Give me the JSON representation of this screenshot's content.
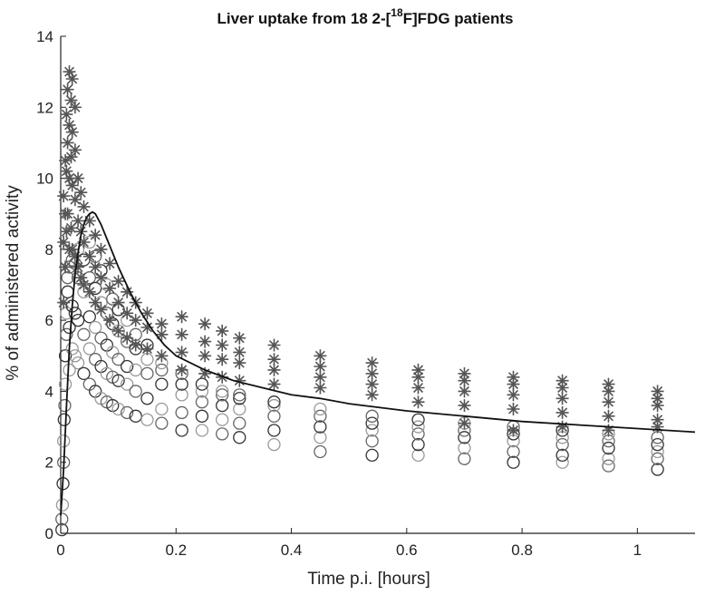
{
  "chart_data": {
    "type": "scatter",
    "title_prefix": "Liver uptake from 18 2-[",
    "title_sup": "18",
    "title_suffix": "F]FDG patients",
    "xlabel": "Time p.i. [hours]",
    "ylabel": "% of administered activity",
    "xlim": [
      0,
      1.1
    ],
    "ylim": [
      0,
      14
    ],
    "xticks": [
      0,
      0.2,
      0.4,
      0.6,
      0.8,
      1
    ],
    "xtick_labels": [
      "0",
      "0.2",
      "0.4",
      "0.6",
      "0.8",
      "1"
    ],
    "yticks": [
      0,
      2,
      4,
      6,
      8,
      10,
      12,
      14
    ],
    "ytick_labels": [
      "0",
      "2",
      "4",
      "6",
      "8",
      "10",
      "12",
      "14"
    ],
    "grid": false,
    "colors": {
      "axis": "#222222",
      "fit": "#111111",
      "circles_dark": "#333333",
      "circles_mid": "#666666",
      "circles_light": "#999999",
      "stars": "#555555"
    },
    "series": [
      {
        "name": "patient-data-star",
        "marker": "star",
        "x": [
          0.005,
          0.005,
          0.005,
          0.008,
          0.008,
          0.008,
          0.01,
          0.01,
          0.01,
          0.012,
          0.012,
          0.012,
          0.015,
          0.015,
          0.015,
          0.015,
          0.018,
          0.018,
          0.018,
          0.02,
          0.02,
          0.02,
          0.02,
          0.025,
          0.025,
          0.025,
          0.025,
          0.03,
          0.03,
          0.03,
          0.035,
          0.035,
          0.035,
          0.04,
          0.04,
          0.04,
          0.05,
          0.05,
          0.05,
          0.06,
          0.06,
          0.06,
          0.07,
          0.07,
          0.07,
          0.085,
          0.085,
          0.085,
          0.1,
          0.1,
          0.1,
          0.115,
          0.115,
          0.115,
          0.13,
          0.13,
          0.13,
          0.15,
          0.15,
          0.15,
          0.175,
          0.175,
          0.175,
          0.21,
          0.21,
          0.21,
          0.21,
          0.25,
          0.25,
          0.25,
          0.25,
          0.28,
          0.28,
          0.28,
          0.28,
          0.31,
          0.31,
          0.31,
          0.31,
          0.37,
          0.37,
          0.37,
          0.37,
          0.45,
          0.45,
          0.45,
          0.45,
          0.54,
          0.54,
          0.54,
          0.54,
          0.62,
          0.62,
          0.62,
          0.62,
          0.7,
          0.7,
          0.7,
          0.7,
          0.785,
          0.785,
          0.785,
          0.785,
          0.87,
          0.87,
          0.87,
          0.87,
          0.95,
          0.95,
          0.95,
          0.95,
          1.035,
          1.035,
          1.035,
          1.035,
          0.7,
          0.785,
          0.87,
          0.95,
          1.035
        ],
        "y": [
          6.5,
          8.2,
          9.5,
          7.5,
          9.0,
          10.5,
          8.5,
          10.2,
          11.8,
          9.0,
          11.0,
          12.5,
          8.0,
          10.0,
          11.5,
          13.0,
          8.6,
          10.6,
          12.2,
          8.0,
          9.8,
          11.3,
          12.8,
          7.8,
          9.4,
          10.8,
          12.0,
          7.5,
          8.8,
          10.0,
          7.2,
          8.5,
          9.6,
          7.0,
          8.2,
          9.2,
          6.8,
          7.8,
          8.8,
          6.5,
          7.5,
          8.4,
          6.3,
          7.2,
          8.0,
          6.0,
          6.9,
          7.6,
          5.7,
          6.5,
          7.1,
          5.5,
          6.2,
          6.8,
          5.3,
          6.0,
          6.5,
          5.2,
          5.8,
          6.2,
          5.0,
          5.6,
          5.9,
          4.6,
          5.1,
          5.6,
          6.1,
          4.5,
          5.0,
          5.4,
          5.9,
          4.4,
          4.9,
          5.3,
          5.7,
          4.3,
          4.8,
          5.1,
          5.5,
          4.2,
          4.6,
          4.9,
          5.3,
          4.1,
          4.4,
          4.7,
          5.0,
          3.9,
          4.2,
          4.5,
          4.8,
          3.7,
          4.1,
          4.4,
          4.6,
          3.6,
          4.0,
          4.3,
          4.5,
          3.5,
          3.9,
          4.2,
          4.4,
          3.4,
          3.8,
          4.1,
          4.3,
          3.3,
          3.7,
          4.0,
          4.2,
          3.2,
          3.6,
          3.8,
          4.0,
          3.1,
          2.9,
          3.0,
          2.9,
          3.0
        ]
      },
      {
        "name": "patient-data-circle",
        "marker": "circle",
        "x": [
          0.002,
          0.002,
          0.003,
          0.004,
          0.005,
          0.005,
          0.006,
          0.007,
          0.008,
          0.008,
          0.01,
          0.01,
          0.012,
          0.012,
          0.015,
          0.015,
          0.015,
          0.02,
          0.02,
          0.02,
          0.025,
          0.025,
          0.025,
          0.03,
          0.03,
          0.03,
          0.03,
          0.04,
          0.04,
          0.04,
          0.04,
          0.05,
          0.05,
          0.05,
          0.05,
          0.05,
          0.06,
          0.06,
          0.06,
          0.06,
          0.06,
          0.07,
          0.07,
          0.07,
          0.07,
          0.07,
          0.08,
          0.08,
          0.08,
          0.08,
          0.08,
          0.09,
          0.09,
          0.09,
          0.09,
          0.09,
          0.1,
          0.1,
          0.1,
          0.1,
          0.1,
          0.115,
          0.115,
          0.115,
          0.115,
          0.115,
          0.13,
          0.13,
          0.13,
          0.13,
          0.13,
          0.15,
          0.15,
          0.15,
          0.15,
          0.15,
          0.175,
          0.175,
          0.175,
          0.175,
          0.175,
          0.21,
          0.21,
          0.21,
          0.21,
          0.21,
          0.245,
          0.245,
          0.245,
          0.245,
          0.245,
          0.28,
          0.28,
          0.28,
          0.28,
          0.28,
          0.31,
          0.31,
          0.31,
          0.31,
          0.31,
          0.37,
          0.37,
          0.37,
          0.37,
          0.37,
          0.45,
          0.45,
          0.45,
          0.45,
          0.45,
          0.54,
          0.54,
          0.54,
          0.54,
          0.54,
          0.62,
          0.62,
          0.62,
          0.62,
          0.62,
          0.7,
          0.7,
          0.7,
          0.7,
          0.7,
          0.785,
          0.785,
          0.785,
          0.785,
          0.785,
          0.87,
          0.87,
          0.87,
          0.87,
          0.87,
          0.95,
          0.95,
          0.95,
          0.95,
          0.95,
          1.035,
          1.035,
          1.035,
          1.035,
          1.035
        ],
        "y": [
          0.1,
          0.4,
          0.8,
          1.4,
          2.0,
          2.6,
          3.2,
          3.6,
          4.2,
          5.0,
          5.6,
          6.2,
          6.8,
          7.2,
          4.6,
          5.8,
          7.5,
          5.2,
          6.4,
          7.7,
          5.0,
          6.2,
          7.6,
          4.8,
          6.0,
          7.2,
          8.0,
          4.5,
          5.6,
          6.8,
          7.7,
          4.2,
          5.2,
          6.1,
          7.2,
          8.2,
          4.0,
          4.9,
          5.8,
          6.9,
          7.8,
          3.8,
          4.7,
          5.5,
          6.5,
          7.4,
          3.7,
          4.5,
          5.3,
          6.2,
          7.0,
          3.6,
          4.4,
          5.1,
          5.9,
          6.6,
          3.5,
          4.3,
          4.9,
          5.7,
          6.3,
          3.4,
          4.2,
          4.7,
          5.4,
          6.0,
          3.3,
          4.0,
          4.6,
          5.2,
          5.6,
          3.2,
          3.8,
          4.5,
          4.9,
          5.3,
          3.1,
          3.5,
          4.2,
          4.6,
          4.8,
          2.9,
          3.4,
          3.9,
          4.2,
          4.5,
          2.9,
          3.3,
          3.7,
          4.0,
          4.2,
          2.8,
          3.2,
          3.6,
          3.9,
          4.0,
          2.7,
          3.1,
          3.5,
          3.8,
          3.9,
          2.5,
          2.9,
          3.3,
          3.6,
          3.7,
          2.3,
          2.7,
          3.0,
          3.3,
          3.5,
          2.2,
          2.6,
          2.9,
          3.1,
          3.3,
          2.2,
          2.5,
          2.8,
          3.0,
          3.2,
          2.1,
          2.4,
          2.7,
          2.9,
          3.1,
          2.0,
          2.3,
          2.6,
          2.8,
          3.0,
          2.0,
          2.2,
          2.5,
          2.7,
          2.9,
          1.9,
          2.1,
          2.4,
          2.6,
          2.8,
          1.8,
          2.1,
          2.3,
          2.5,
          2.7
        ]
      },
      {
        "name": "model-fit",
        "marker": "line",
        "x": [
          0.0,
          0.005,
          0.01,
          0.015,
          0.02,
          0.025,
          0.03,
          0.035,
          0.04,
          0.045,
          0.05,
          0.055,
          0.06,
          0.07,
          0.08,
          0.09,
          0.1,
          0.12,
          0.14,
          0.16,
          0.18,
          0.2,
          0.25,
          0.3,
          0.35,
          0.4,
          0.45,
          0.5,
          0.6,
          0.7,
          0.8,
          0.9,
          1.0,
          1.1
        ],
        "y": [
          0.5,
          1.8,
          3.6,
          5.2,
          6.4,
          7.3,
          7.9,
          8.4,
          8.7,
          8.9,
          9.0,
          9.05,
          9.0,
          8.7,
          8.3,
          7.9,
          7.5,
          6.8,
          6.2,
          5.7,
          5.3,
          5.0,
          4.6,
          4.3,
          4.1,
          3.9,
          3.8,
          3.65,
          3.45,
          3.3,
          3.15,
          3.05,
          2.95,
          2.85
        ]
      }
    ]
  }
}
